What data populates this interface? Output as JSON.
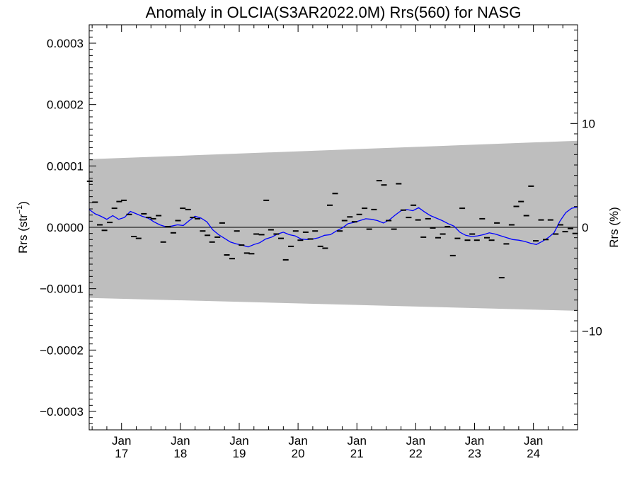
{
  "chart_data": {
    "type": "scatter",
    "title": "Anomaly in OLCIA(S3AR2022.0M) Rrs(560) for NASG",
    "ylabel": "Rrs (str",
    "ylabel_sup": "−1",
    "ylabel_close": ")",
    "y2label": "Rrs (%)",
    "xlabel": "",
    "xlim": [
      2016.45,
      2024.75
    ],
    "ylim": [
      -0.00033,
      0.00033
    ],
    "y2lim": [
      -19.5,
      19.5
    ],
    "grid": false,
    "legend": "none",
    "colors": {
      "points": "#000000",
      "smooth_line": "#0000ff",
      "band": "#bebebe",
      "zero_line": "#000000"
    },
    "y_ticks": [
      {
        "value": 0.0003,
        "label": "0.0003"
      },
      {
        "value": 0.0002,
        "label": "0.0002"
      },
      {
        "value": 0.0001,
        "label": "0.0001"
      },
      {
        "value": 0,
        "label": "0.0000"
      },
      {
        "value": -0.0001,
        "label": "−0.0001"
      },
      {
        "value": -0.0002,
        "label": "−0.0002"
      },
      {
        "value": -0.0003,
        "label": "−0.0003"
      }
    ],
    "y2_ticks": [
      {
        "value": 10,
        "label": "10"
      },
      {
        "value": 0,
        "label": "0"
      },
      {
        "value": -10,
        "label": "−10"
      }
    ],
    "x_ticks": [
      {
        "value": 2017.0,
        "month": "Jan",
        "year": "17"
      },
      {
        "value": 2018.0,
        "month": "Jan",
        "year": "18"
      },
      {
        "value": 2019.0,
        "month": "Jan",
        "year": "19"
      },
      {
        "value": 2020.0,
        "month": "Jan",
        "year": "20"
      },
      {
        "value": 2021.0,
        "month": "Jan",
        "year": "21"
      },
      {
        "value": 2022.0,
        "month": "Jan",
        "year": "22"
      },
      {
        "value": 2023.0,
        "month": "Jan",
        "year": "23"
      },
      {
        "value": 2024.0,
        "month": "Jan",
        "year": "24"
      }
    ],
    "band": {
      "x": [
        2016.45,
        2024.75
      ],
      "upper": [
        0.000111,
        0.000141
      ],
      "lower": [
        -0.000115,
        -0.000136
      ]
    },
    "series": [
      {
        "kind": "points",
        "x": [
          2016.46,
          2016.55,
          2016.63,
          2016.71,
          2016.8,
          2016.88,
          2016.96,
          2017.04,
          2017.13,
          2017.21,
          2017.29,
          2017.38,
          2017.46,
          2017.54,
          2017.63,
          2017.71,
          2017.79,
          2017.88,
          2017.96,
          2018.04,
          2018.13,
          2018.21,
          2018.29,
          2018.38,
          2018.46,
          2018.54,
          2018.63,
          2018.71,
          2018.79,
          2018.88,
          2018.96,
          2019.04,
          2019.13,
          2019.21,
          2019.29,
          2019.38,
          2019.46,
          2019.54,
          2019.63,
          2019.71,
          2019.79,
          2019.88,
          2019.96,
          2020.04,
          2020.13,
          2020.21,
          2020.29,
          2020.38,
          2020.46,
          2020.54,
          2020.63,
          2020.71,
          2020.79,
          2020.88,
          2020.96,
          2021.04,
          2021.13,
          2021.21,
          2021.29,
          2021.38,
          2021.46,
          2021.54,
          2021.63,
          2021.71,
          2021.79,
          2021.88,
          2021.96,
          2022.04,
          2022.13,
          2022.21,
          2022.29,
          2022.38,
          2022.46,
          2022.54,
          2022.63,
          2022.71,
          2022.79,
          2022.88,
          2022.96,
          2023.04,
          2023.13,
          2023.21,
          2023.29,
          2023.38,
          2023.46,
          2023.54,
          2023.63,
          2023.71,
          2023.79,
          2023.88,
          2023.96,
          2024.04,
          2024.13,
          2024.21,
          2024.29,
          2024.38,
          2024.46,
          2024.54,
          2024.63,
          2024.71
        ],
        "y": [
          7.5e-05,
          4.1e-05,
          4e-06,
          -5e-06,
          8e-06,
          3.1e-05,
          4.2e-05,
          4.4e-05,
          2.1e-05,
          -1.5e-05,
          -1.8e-05,
          2.2e-05,
          1.6e-05,
          1.4e-05,
          1.9e-05,
          -2.4e-05,
          1e-06,
          -9e-06,
          1.1e-05,
          3.1e-05,
          2.9e-05,
          1.6e-05,
          1.4e-05,
          -6e-06,
          -1.3e-05,
          -2.4e-05,
          -1.6e-05,
          7e-06,
          -4.5e-05,
          -5.1e-05,
          -6e-06,
          -2.9e-05,
          -4.2e-05,
          -4.3e-05,
          -1.1e-05,
          -1.2e-05,
          4.4e-05,
          -4e-06,
          -1.1e-05,
          -1.8e-05,
          -5.3e-05,
          -3.1e-05,
          -6e-06,
          -2.1e-05,
          -8e-06,
          -1.9e-05,
          -6e-06,
          -3.1e-05,
          -3.4e-05,
          3.6e-05,
          5.5e-05,
          -6e-06,
          1.1e-05,
          1.7e-05,
          9e-06,
          2.1e-05,
          3.1e-05,
          -3e-06,
          2.9e-05,
          7.6e-05,
          6.9e-05,
          1.1e-05,
          -3e-06,
          7.1e-05,
          2.8e-05,
          1.6e-05,
          3.6e-05,
          1.2e-05,
          -1.6e-05,
          1.4e-05,
          -1e-06,
          -1.7e-05,
          -1.1e-05,
          1e-06,
          -4.6e-05,
          -1.8e-05,
          3.1e-05,
          -2.1e-05,
          -1.1e-05,
          -2.1e-05,
          1.4e-05,
          -1.7e-05,
          -2.1e-05,
          7e-06,
          -8.2e-05,
          -2.7e-05,
          4e-06,
          3.4e-05,
          4.2e-05,
          1.9e-05,
          6.7e-05,
          -2.2e-05,
          1.2e-05,
          -2e-05,
          1.2e-05,
          -1.1e-05,
          4e-06,
          -7e-06,
          -2e-06,
          -1e-05
        ]
      },
      {
        "kind": "smooth",
        "x": [
          2016.45,
          2016.55,
          2016.65,
          2016.75,
          2016.85,
          2016.95,
          2017.05,
          2017.15,
          2017.25,
          2017.35,
          2017.45,
          2017.55,
          2017.65,
          2017.75,
          2017.85,
          2017.95,
          2018.05,
          2018.15,
          2018.25,
          2018.35,
          2018.45,
          2018.55,
          2018.65,
          2018.75,
          2018.85,
          2018.95,
          2019.05,
          2019.15,
          2019.25,
          2019.35,
          2019.45,
          2019.55,
          2019.65,
          2019.75,
          2019.85,
          2019.95,
          2020.05,
          2020.15,
          2020.25,
          2020.35,
          2020.45,
          2020.55,
          2020.65,
          2020.75,
          2020.85,
          2020.95,
          2021.05,
          2021.15,
          2021.25,
          2021.35,
          2021.45,
          2021.55,
          2021.65,
          2021.75,
          2021.85,
          2021.95,
          2022.05,
          2022.15,
          2022.25,
          2022.35,
          2022.45,
          2022.55,
          2022.65,
          2022.75,
          2022.85,
          2022.95,
          2023.05,
          2023.15,
          2023.25,
          2023.35,
          2023.45,
          2023.55,
          2023.65,
          2023.75,
          2023.85,
          2023.95,
          2024.05,
          2024.15,
          2024.25,
          2024.35,
          2024.45,
          2024.55,
          2024.65,
          2024.75
        ],
        "y": [
          2.9e-05,
          2.2e-05,
          1.8e-05,
          1.3e-05,
          1.9e-05,
          1.3e-05,
          1.6e-05,
          2.6e-05,
          2.2e-05,
          1.8e-05,
          1.5e-05,
          9e-06,
          4e-06,
          1e-06,
          2e-06,
          4e-06,
          3e-06,
          1.1e-05,
          1.8e-05,
          1.5e-05,
          9e-06,
          -4e-06,
          -1.2e-05,
          -1.8e-05,
          -2.4e-05,
          -2.7e-05,
          -2.9e-05,
          -3.2e-05,
          -2.8e-05,
          -2.5e-05,
          -1.9e-05,
          -1.6e-05,
          -1.1e-05,
          -8e-06,
          -1.2e-05,
          -1.4e-05,
          -1.9e-05,
          -2e-05,
          -1.9e-05,
          -1.7e-05,
          -1.3e-05,
          -1.2e-05,
          -6e-06,
          -1e-06,
          6e-06,
          8e-06,
          1.1e-05,
          1.4e-05,
          1.3e-05,
          1.1e-05,
          7e-06,
          1.2e-05,
          2e-05,
          2.7e-05,
          2.9e-05,
          2.7e-05,
          3.2e-05,
          2.5e-05,
          1.9e-05,
          1.5e-05,
          1.1e-05,
          6e-06,
          2e-06,
          -8e-06,
          -1.3e-05,
          -1.5e-05,
          -1.4e-05,
          -1.2e-05,
          -9e-06,
          -1.1e-05,
          -1.4e-05,
          -1.7e-05,
          -2e-05,
          -2.1e-05,
          -2.3e-05,
          -2.6e-05,
          -2.8e-05,
          -2.3e-05,
          -1.7e-05,
          -9e-06,
          1e-05,
          2.4e-05,
          3.1e-05,
          3.3e-05
        ]
      }
    ]
  }
}
